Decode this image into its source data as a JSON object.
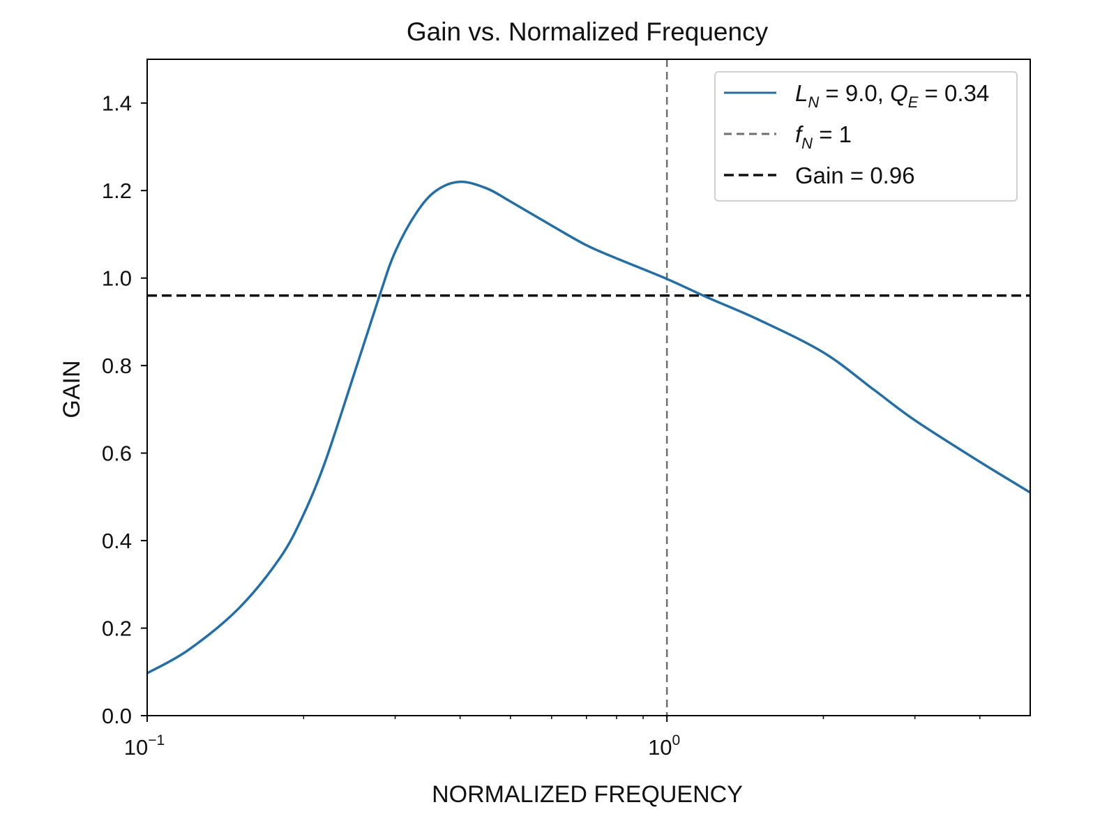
{
  "chart_data": {
    "type": "line",
    "title": "Gain vs. Normalized Frequency",
    "xlabel": "NORMALIZED FREQUENCY",
    "ylabel": "GAIN",
    "xscale": "log",
    "xlim": [
      0.1,
      5.0
    ],
    "ylim": [
      0.0,
      1.5
    ],
    "grid": false,
    "legend_position": "upper-right",
    "x_ticks": [
      {
        "value": 0.1,
        "base": "10",
        "exp": "−1"
      },
      {
        "value": 1.0,
        "base": "10",
        "exp": "0"
      }
    ],
    "y_ticks": [
      {
        "value": 0.0,
        "label": "0.0"
      },
      {
        "value": 0.2,
        "label": "0.2"
      },
      {
        "value": 0.4,
        "label": "0.4"
      },
      {
        "value": 0.6,
        "label": "0.6"
      },
      {
        "value": 0.8,
        "label": "0.8"
      },
      {
        "value": 1.0,
        "label": "1.0"
      },
      {
        "value": 1.2,
        "label": "1.2"
      },
      {
        "value": 1.4,
        "label": "1.4"
      }
    ],
    "series": [
      {
        "name": "L_N = 9.0, Q_E = 0.34",
        "color": "#1f6fab",
        "style": "solid",
        "x": [
          0.1,
          0.12,
          0.15,
          0.18,
          0.2,
          0.22,
          0.25,
          0.28,
          0.3,
          0.33,
          0.36,
          0.4,
          0.45,
          0.5,
          0.6,
          0.7,
          0.8,
          1.0,
          1.2,
          1.5,
          2.0,
          2.5,
          3.0,
          4.0,
          5.0
        ],
        "y": [
          0.097,
          0.15,
          0.245,
          0.36,
          0.46,
          0.58,
          0.78,
          0.96,
          1.06,
          1.15,
          1.2,
          1.22,
          1.205,
          1.175,
          1.12,
          1.075,
          1.045,
          0.998,
          0.955,
          0.905,
          0.83,
          0.745,
          0.675,
          0.58,
          0.51
        ]
      }
    ],
    "reference_lines": [
      {
        "name": "f_N = 1",
        "orientation": "vertical",
        "value": 1.0,
        "color": "#6e6e6e",
        "style": "dashed"
      },
      {
        "name": "Gain = 0.96",
        "orientation": "horizontal",
        "value": 0.96,
        "color": "#111111",
        "style": "dashed"
      }
    ],
    "legend": [
      {
        "kind": "series",
        "color": "#1f6fab",
        "style": "solid",
        "parts": [
          {
            "t": "L",
            "italic": true
          },
          {
            "t": "N",
            "italic": true,
            "sub": true
          },
          {
            "t": " = 9.0, "
          },
          {
            "t": "Q",
            "italic": true
          },
          {
            "t": "E",
            "italic": true,
            "sub": true
          },
          {
            "t": " = 0.34"
          }
        ]
      },
      {
        "kind": "vline",
        "color": "#6e6e6e",
        "style": "dashed",
        "parts": [
          {
            "t": "f",
            "italic": true
          },
          {
            "t": "N",
            "italic": true,
            "sub": true
          },
          {
            "t": " = 1"
          }
        ]
      },
      {
        "kind": "hline",
        "color": "#111111",
        "style": "dashed",
        "parts": [
          {
            "t": "Gain = 0.96"
          }
        ]
      }
    ]
  }
}
